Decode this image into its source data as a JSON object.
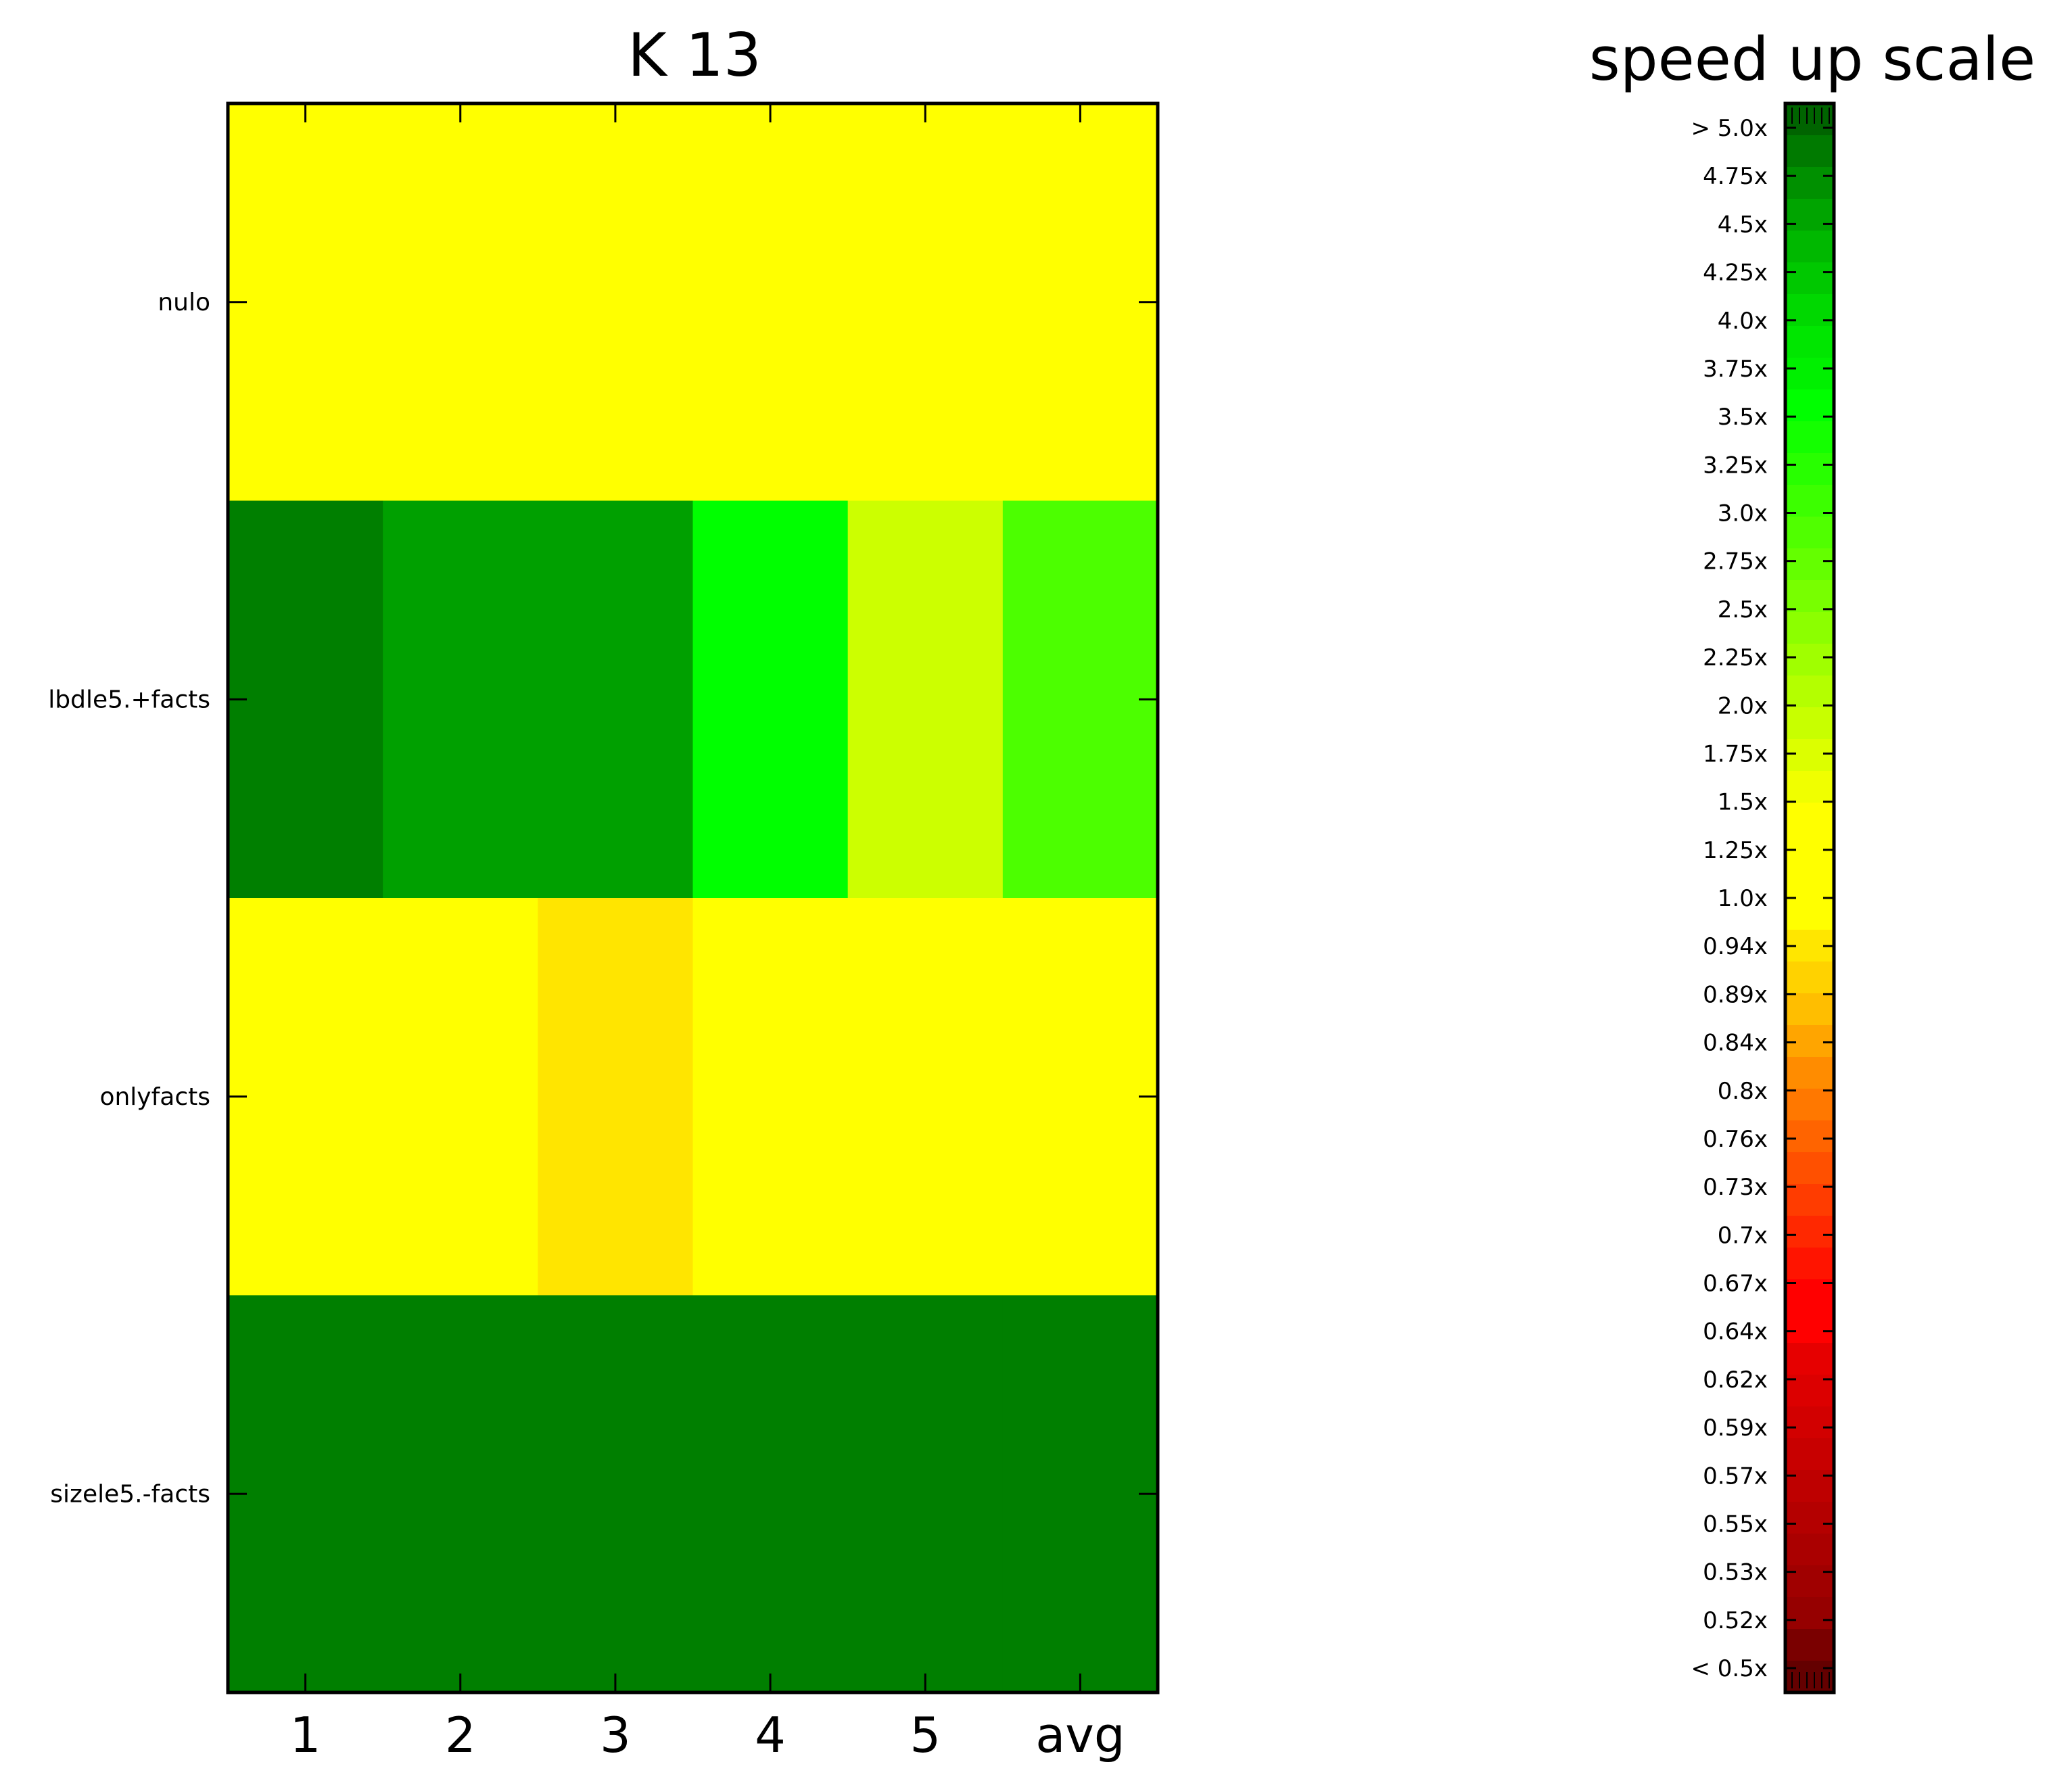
{
  "chart_data": [
    {
      "type": "heatmap",
      "title": "K 13",
      "x_categories": [
        "1",
        "2",
        "3",
        "4",
        "5",
        "avg"
      ],
      "y_categories": [
        "nulo",
        "lbdle5.+facts",
        "onlyfacts",
        "sizele5.-facts"
      ],
      "cell_colors": [
        [
          "#ffff00",
          "#ffff00",
          "#ffff00",
          "#ffff00",
          "#ffff00",
          "#ffff00"
        ],
        [
          "#007f00",
          "#00a000",
          "#00a000",
          "#00ff00",
          "#ccff00",
          "#4cff00"
        ],
        [
          "#ffff00",
          "#ffff00",
          "#ffe500",
          "#ffff00",
          "#ffff00",
          "#ffff00"
        ],
        [
          "#007f00",
          "#007f00",
          "#007f00",
          "#007f00",
          "#007f00",
          "#007f00"
        ]
      ],
      "values": [
        [
          1.0,
          1.0,
          1.0,
          1.0,
          1.0,
          1.0
        ],
        [
          5.0,
          4.75,
          4.75,
          4.0,
          1.75,
          3.0
        ],
        [
          1.0,
          1.0,
          0.94,
          1.0,
          1.0,
          1.0
        ],
        [
          5.0,
          5.0,
          5.0,
          5.0,
          5.0,
          5.0
        ]
      ],
      "grid": false
    },
    {
      "type": "colorbar",
      "title": "speed up scale",
      "tick_labels": [
        "> 5.0x",
        "4.75x",
        "4.5x",
        "4.25x",
        "4.0x",
        "3.75x",
        "3.5x",
        "3.25x",
        "3.0x",
        "2.75x",
        "2.5x",
        "2.25x",
        "2.0x",
        "1.75x",
        "1.5x",
        "1.25x",
        "1.0x",
        "0.94x",
        "0.89x",
        "0.84x",
        "0.8x",
        "0.76x",
        "0.73x",
        "0.7x",
        "0.67x",
        "0.64x",
        "0.62x",
        "0.59x",
        "0.57x",
        "0.55x",
        "0.53x",
        "0.52x",
        "< 0.5x"
      ],
      "band_colors": [
        "#006400",
        "#007a00",
        "#009000",
        "#00a400",
        "#00b800",
        "#00c800",
        "#00d800",
        "#00e600",
        "#00f000",
        "#00ff00",
        "#14ff00",
        "#28ff00",
        "#3cff00",
        "#50ff00",
        "#64ff00",
        "#78ff00",
        "#8cff00",
        "#a0ff00",
        "#b4ff00",
        "#c8ff00",
        "#dcff00",
        "#f0ff00",
        "#ffff00",
        "#ffff00",
        "#ffff00",
        "#ffff00",
        "#ffe600",
        "#ffd200",
        "#ffbe00",
        "#ffa500",
        "#ff8c00",
        "#ff7800",
        "#ff6400",
        "#ff5000",
        "#ff3c00",
        "#ff2800",
        "#ff1400",
        "#ff0000",
        "#ff0000",
        "#e60000",
        "#dc0000",
        "#d20000",
        "#c80000",
        "#be0000",
        "#b40000",
        "#aa0000",
        "#a00000",
        "#960000",
        "#7a0000",
        "#640000"
      ]
    }
  ]
}
